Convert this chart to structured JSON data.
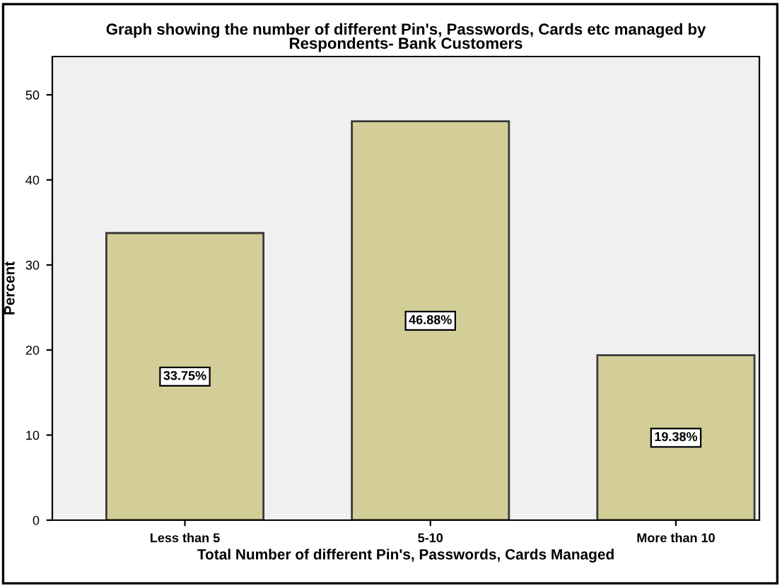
{
  "chart_data": {
    "type": "bar",
    "title": "Graph showing the number of different Pin's, Passwords, Cards etc managed by\nRespondents- Bank Customers",
    "xlabel": "Total Number of different Pin's, Passwords, Cards Managed",
    "ylabel": "Percent",
    "categories": [
      "Less than 5",
      "5-10",
      "More than 10"
    ],
    "values": [
      33.75,
      46.88,
      19.38
    ],
    "value_labels": [
      "33.75%",
      "46.88%",
      "19.38%"
    ],
    "color": "#d3ce97",
    "ylim": [
      0,
      54.5
    ],
    "yticks": [
      0,
      10,
      20,
      30,
      40,
      50
    ],
    "grid": false
  }
}
